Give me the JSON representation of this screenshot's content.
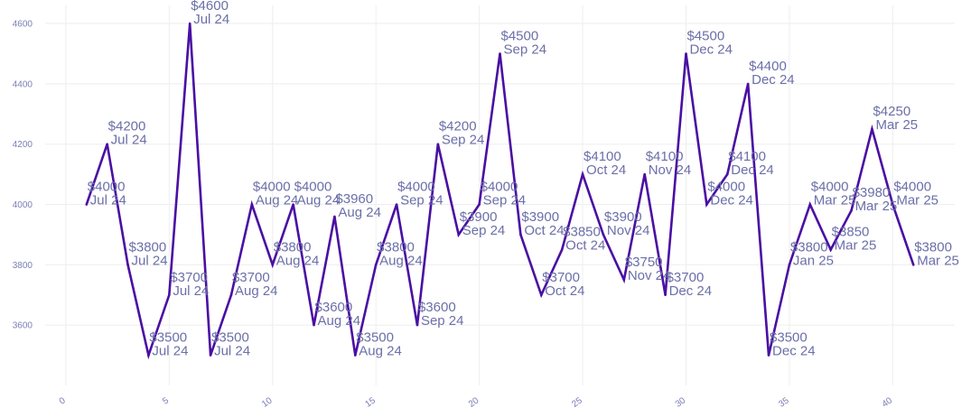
{
  "chart_data": {
    "type": "line",
    "title": "",
    "xlabel": "",
    "ylabel": "",
    "xlim": [
      -1,
      43
    ],
    "ylim": [
      3400,
      4660
    ],
    "x_ticks": [
      0,
      5,
      10,
      15,
      20,
      25,
      30,
      35,
      40
    ],
    "y_ticks": [
      3600,
      3800,
      4000,
      4200,
      4400,
      4600
    ],
    "grid": true,
    "legend": "none",
    "line_color": "#4a0fa3",
    "series": [
      {
        "x": [
          1,
          2,
          3,
          4,
          5,
          6,
          7,
          8,
          9,
          10,
          11,
          12,
          13,
          14,
          15,
          16,
          17,
          18,
          19,
          20,
          21,
          22,
          23,
          24,
          25,
          26,
          27,
          28,
          29,
          30,
          31,
          32,
          33,
          34,
          35,
          36,
          37,
          38,
          39,
          40,
          41
        ],
        "values": [
          4000,
          4200,
          3800,
          3500,
          3700,
          4600,
          3500,
          3700,
          4000,
          3800,
          4000,
          3600,
          3960,
          3500,
          3800,
          4000,
          3600,
          4200,
          3900,
          4000,
          4500,
          3900,
          3700,
          3850,
          4100,
          3900,
          3750,
          4100,
          3700,
          4500,
          4000,
          4100,
          4400,
          3500,
          3800,
          4000,
          3850,
          3980,
          4250,
          4000,
          3800
        ],
        "labels": [
          "$4000",
          "$4200",
          "$3800",
          "$3500",
          "$3700",
          "$4600",
          "$3500",
          "$3700",
          "$4000",
          "$3800",
          "$4000",
          "$3600",
          "$3960",
          "$3500",
          "$3800",
          "$4000",
          "$3600",
          "$4200",
          "$3900",
          "$4000",
          "$4500",
          "$3900",
          "$3700",
          "$3850",
          "$4100",
          "$3900",
          "$3750",
          "$4100",
          "$3700",
          "$4500",
          "$4000",
          "$4100",
          "$4400",
          "$3500",
          "$3800",
          "$4000",
          "$3850",
          "$3980",
          "$4250",
          "$4000",
          "$3800"
        ],
        "months": [
          "Jul 24",
          "Jul 24",
          "Jul 24",
          "Jul 24",
          "Jul 24",
          "Jul 24",
          "Jul 24",
          "Aug 24",
          "Aug 24",
          "Aug 24",
          "Aug 24",
          "Aug 24",
          "Aug 24",
          "Aug 24",
          "Aug 24",
          "Sep 24",
          "Sep 24",
          "Sep 24",
          "Sep 24",
          "Sep 24",
          "Sep 24",
          "Oct 24",
          "Oct 24",
          "Oct 24",
          "Oct 24",
          "Nov 24",
          "Nov 24",
          "Nov 24",
          "Dec 24",
          "Dec 24",
          "Dec 24",
          "Dec 24",
          "Dec 24",
          "Dec 24",
          "Jan 25",
          "Mar 25",
          "Mar 25",
          "Mar 25",
          "Mar 25",
          "Mar 25",
          "Mar 25"
        ]
      }
    ]
  }
}
